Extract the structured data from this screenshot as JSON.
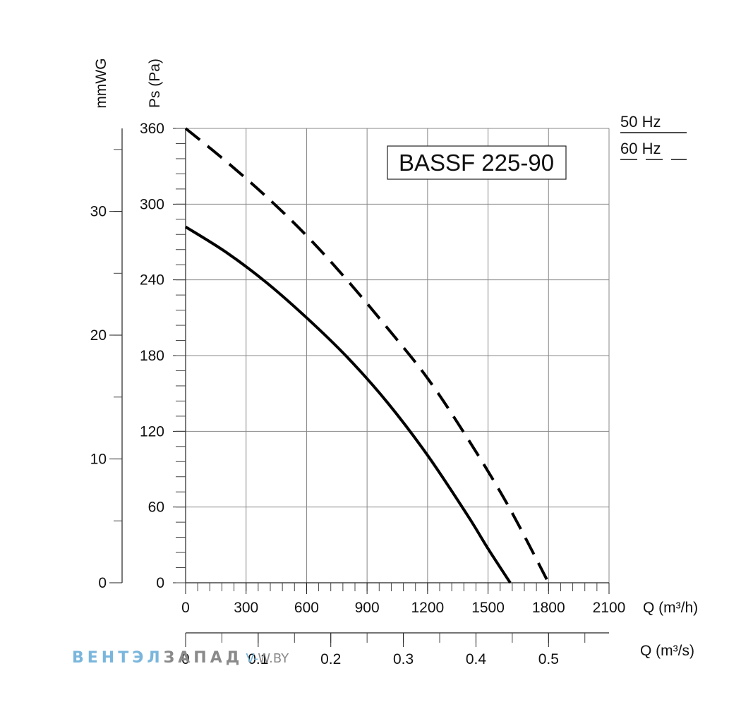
{
  "chart_data": {
    "type": "line",
    "model_label": "BASSF 225-90",
    "x_axis": {
      "label": "Q (m³/h)",
      "ticks": [
        "0",
        "300",
        "600",
        "900",
        "1200",
        "1500",
        "1800",
        "2100"
      ],
      "range": [
        0,
        2100
      ]
    },
    "x2_axis": {
      "label": "Q (m³/s)",
      "ticks": [
        "0",
        "0.1",
        "0.2",
        "0.3",
        "0.4",
        "0.5"
      ],
      "range": [
        0,
        0.5833
      ]
    },
    "y_axis": {
      "label": "Ps (Pa)",
      "ticks": [
        "0",
        "60",
        "120",
        "180",
        "240",
        "300",
        "360"
      ],
      "range": [
        0,
        360
      ]
    },
    "y2_axis": {
      "label": "mmWG",
      "ticks": [
        "0",
        "10",
        "20",
        "30"
      ],
      "range": [
        0,
        36.7
      ]
    },
    "grid": true,
    "legend_position": "top-right",
    "series": [
      {
        "name": "50 Hz",
        "style": "solid",
        "color": "#000000",
        "points": [
          [
            0,
            282
          ],
          [
            200,
            262
          ],
          [
            400,
            238
          ],
          [
            600,
            210
          ],
          [
            800,
            179
          ],
          [
            1000,
            143
          ],
          [
            1200,
            101
          ],
          [
            1400,
            53
          ],
          [
            1500,
            27
          ],
          [
            1610,
            0
          ]
        ]
      },
      {
        "name": "60 Hz",
        "style": "dashed",
        "color": "#000000",
        "points": [
          [
            0,
            360
          ],
          [
            200,
            334
          ],
          [
            400,
            306
          ],
          [
            600,
            275
          ],
          [
            800,
            240
          ],
          [
            1000,
            202
          ],
          [
            1200,
            162
          ],
          [
            1400,
            114
          ],
          [
            1600,
            61
          ],
          [
            1800,
            0
          ]
        ]
      }
    ],
    "legend": [
      {
        "name": "50 Hz",
        "style": "solid"
      },
      {
        "name": "60 Hz",
        "style": "dashed"
      }
    ]
  },
  "watermark": {
    "part1": "ВЕНТЭЛ",
    "part2": "ЗАПАД",
    "part3": "V-",
    "part4": "W.BY"
  }
}
